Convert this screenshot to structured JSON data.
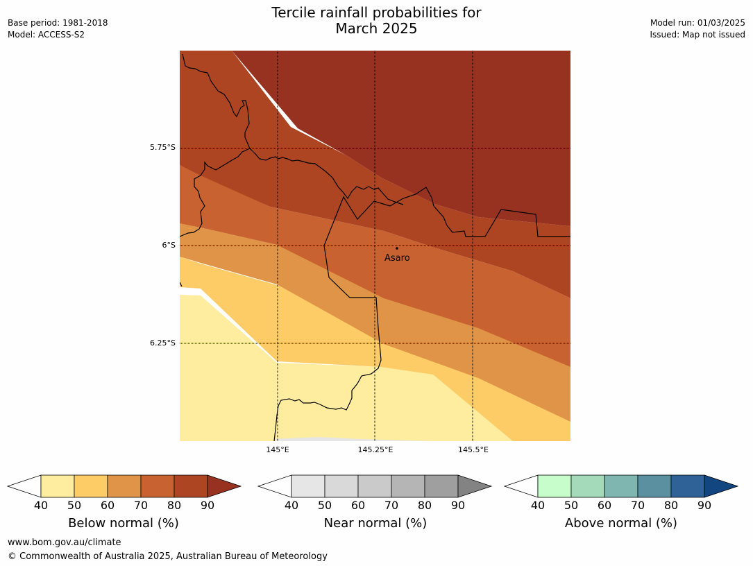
{
  "header": {
    "base_period": "Base period: 1981-2018",
    "model": "Model: ACCESS-S2",
    "title_line1": "Tercile rainfall probabilities for",
    "title_line2": "March 2025",
    "model_run": "Model run: 01/03/2025",
    "issued": "Issued: Map not issued"
  },
  "map": {
    "lat_labels": [
      "5.75°S",
      "6°S",
      "6.25°S"
    ],
    "lon_labels": [
      "145°E",
      "145.25°E",
      "145.5°E"
    ],
    "place": "Asaro",
    "colors": {
      "below_90": "#973220",
      "below_80": "#ae4522",
      "below_70": "#c86331",
      "below_60": "#e09447",
      "below_50": "#fdcc67",
      "below_40": "#feec9f",
      "near_40": "#e6e6e6",
      "no_signal": "#fefefe"
    }
  },
  "legends": [
    {
      "title": "Below normal (%)",
      "ticks": [
        "40",
        "50",
        "60",
        "70",
        "80",
        "90"
      ],
      "colors": [
        "#feec9f",
        "#fdcc67",
        "#e09447",
        "#c86331",
        "#ae4522"
      ],
      "extend_color": "#973220"
    },
    {
      "title": "Near normal (%)",
      "ticks": [
        "40",
        "50",
        "60",
        "70",
        "80",
        "90"
      ],
      "colors": [
        "#e6e6e6",
        "#d9d9d9",
        "#cacaca",
        "#b5b5b5",
        "#9f9f9f"
      ],
      "extend_color": "#838383"
    },
    {
      "title": "Above normal (%)",
      "ticks": [
        "40",
        "50",
        "60",
        "70",
        "80",
        "90"
      ],
      "colors": [
        "#c7fdcb",
        "#a4d9ba",
        "#7fb6b0",
        "#5a90a0",
        "#2f6397"
      ],
      "extend_color": "#124680"
    }
  ],
  "footer": {
    "url": "www.bom.gov.au/climate",
    "copyright": "© Commonwealth of Australia 2025, Australian Bureau of Meteorology"
  }
}
